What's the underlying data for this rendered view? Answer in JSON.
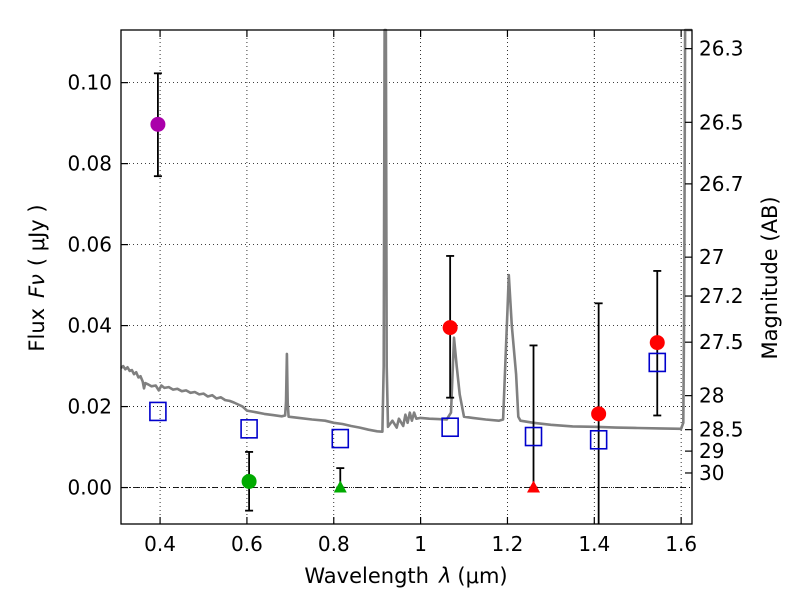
{
  "chart_data": {
    "type": "scatter",
    "xlabel_prefix": "Wavelength",
    "xlabel_symbol": "λ",
    "xlabel_unit": "(μm)",
    "ylabel_prefix": "Flux",
    "ylabel_symbol": "Fν",
    "ylabel_unit": "( μJy )",
    "y2label": "Magnitude (AB)",
    "xlim": [
      0.31,
      1.625
    ],
    "ylim": [
      -0.009,
      0.113
    ],
    "grid": true,
    "x_ticks": [
      0.4,
      0.6,
      0.8,
      1.0,
      1.2,
      1.4,
      1.6
    ],
    "x_tick_labels": [
      "0.4",
      "0.6",
      "0.8",
      "1",
      "1.2",
      "1.4",
      "1.6"
    ],
    "y_ticks": [
      0.0,
      0.02,
      0.04,
      0.06,
      0.08,
      0.1
    ],
    "y_tick_labels": [
      "0.00",
      "0.02",
      "0.04",
      "0.06",
      "0.08",
      "0.10"
    ],
    "mag_ticks": [
      {
        "label": "26.3",
        "flux": 0.1084
      },
      {
        "label": "26.5",
        "flux": 0.0902
      },
      {
        "label": "26.7",
        "flux": 0.075
      },
      {
        "label": "27",
        "flux": 0.0569
      },
      {
        "label": "27.2",
        "flux": 0.0473
      },
      {
        "label": "27.5",
        "flux": 0.0359
      },
      {
        "label": "28",
        "flux": 0.0227
      },
      {
        "label": "28.5",
        "flux": 0.0143
      },
      {
        "label": "29",
        "flux": 0.009
      },
      {
        "label": "30",
        "flux": 0.0036
      }
    ],
    "measurements": [
      {
        "x": 0.395,
        "y": 0.0897,
        "err_low": 0.0769,
        "err_high": 0.1023,
        "color": "#aa00aa",
        "marker": "circle"
      },
      {
        "x": 0.605,
        "y": 0.0015,
        "err_low": -0.0057,
        "err_high": 0.0088,
        "color": "#00aa00",
        "marker": "circle"
      },
      {
        "x": 0.815,
        "y": 0.0,
        "err_low": 0.0,
        "err_high": 0.0048,
        "color": "#00aa00",
        "marker": "triangle"
      },
      {
        "x": 1.068,
        "y": 0.0395,
        "err_low": 0.0222,
        "err_high": 0.0572,
        "color": "#ff0000",
        "marker": "circle"
      },
      {
        "x": 1.26,
        "y": 0.0,
        "err_low": 0.0,
        "err_high": 0.0351,
        "color": "#ff0000",
        "marker": "triangle"
      },
      {
        "x": 1.41,
        "y": 0.0182,
        "err_low": -0.009,
        "err_high": 0.0455,
        "color": "#ff0000",
        "marker": "circle"
      },
      {
        "x": 1.545,
        "y": 0.0358,
        "err_low": 0.0178,
        "err_high": 0.0535,
        "color": "#ff0000",
        "marker": "circle"
      }
    ],
    "model_photometry": {
      "color": "#0000cc",
      "marker": "square",
      "points": [
        [
          0.395,
          0.0188
        ],
        [
          0.605,
          0.0145
        ],
        [
          0.815,
          0.0121
        ],
        [
          1.068,
          0.0149
        ],
        [
          1.26,
          0.0126
        ],
        [
          1.41,
          0.0118
        ],
        [
          1.545,
          0.0309
        ]
      ]
    },
    "sed_model": {
      "color": "#808080",
      "points": [
        [
          0.31,
          0.0295
        ],
        [
          0.315,
          0.03
        ],
        [
          0.32,
          0.0292
        ],
        [
          0.325,
          0.0297
        ],
        [
          0.33,
          0.0288
        ],
        [
          0.335,
          0.029
        ],
        [
          0.34,
          0.028
        ],
        [
          0.345,
          0.0285
        ],
        [
          0.35,
          0.0272
        ],
        [
          0.355,
          0.0275
        ],
        [
          0.36,
          0.0262
        ],
        [
          0.363,
          0.0245
        ],
        [
          0.366,
          0.0258
        ],
        [
          0.372,
          0.0255
        ],
        [
          0.38,
          0.025
        ],
        [
          0.39,
          0.0252
        ],
        [
          0.397,
          0.024
        ],
        [
          0.403,
          0.0252
        ],
        [
          0.41,
          0.0246
        ],
        [
          0.42,
          0.0248
        ],
        [
          0.43,
          0.0242
        ],
        [
          0.44,
          0.0244
        ],
        [
          0.45,
          0.0238
        ],
        [
          0.46,
          0.024
        ],
        [
          0.47,
          0.0234
        ],
        [
          0.48,
          0.0236
        ],
        [
          0.49,
          0.023
        ],
        [
          0.5,
          0.0232
        ],
        [
          0.51,
          0.0225
        ],
        [
          0.52,
          0.0228
        ],
        [
          0.53,
          0.022
        ],
        [
          0.54,
          0.0223
        ],
        [
          0.55,
          0.0216
        ],
        [
          0.56,
          0.0214
        ],
        [
          0.57,
          0.021
        ],
        [
          0.58,
          0.0205
        ],
        [
          0.59,
          0.02
        ],
        [
          0.6,
          0.019
        ],
        [
          0.62,
          0.0186
        ],
        [
          0.64,
          0.0182
        ],
        [
          0.66,
          0.0179
        ],
        [
          0.68,
          0.0176
        ],
        [
          0.688,
          0.0178
        ],
        [
          0.69,
          0.021
        ],
        [
          0.692,
          0.033
        ],
        [
          0.694,
          0.021
        ],
        [
          0.696,
          0.0175
        ],
        [
          0.72,
          0.0172
        ],
        [
          0.75,
          0.0168
        ],
        [
          0.78,
          0.0165
        ],
        [
          0.8,
          0.016
        ],
        [
          0.82,
          0.0157
        ],
        [
          0.84,
          0.0152
        ],
        [
          0.86,
          0.0148
        ],
        [
          0.88,
          0.0143
        ],
        [
          0.9,
          0.0139
        ],
        [
          0.912,
          0.0138
        ],
        [
          0.915,
          0.03
        ],
        [
          0.917,
          0.113
        ],
        [
          0.92,
          0.113
        ],
        [
          0.922,
          0.03
        ],
        [
          0.925,
          0.015
        ],
        [
          0.935,
          0.0165
        ],
        [
          0.945,
          0.0148
        ],
        [
          0.95,
          0.017
        ],
        [
          0.96,
          0.0152
        ],
        [
          0.965,
          0.018
        ],
        [
          0.97,
          0.016
        ],
        [
          0.975,
          0.0185
        ],
        [
          0.98,
          0.0165
        ],
        [
          0.985,
          0.0185
        ],
        [
          0.99,
          0.017
        ],
        [
          1.0,
          0.0172
        ],
        [
          1.02,
          0.017
        ],
        [
          1.04,
          0.0169
        ],
        [
          1.06,
          0.0168
        ],
        [
          1.07,
          0.0185
        ],
        [
          1.077,
          0.037
        ],
        [
          1.083,
          0.03
        ],
        [
          1.09,
          0.023
        ],
        [
          1.1,
          0.0175
        ],
        [
          1.12,
          0.0172
        ],
        [
          1.15,
          0.0168
        ],
        [
          1.18,
          0.0165
        ],
        [
          1.19,
          0.0168
        ],
        [
          1.2,
          0.044
        ],
        [
          1.203,
          0.0525
        ],
        [
          1.21,
          0.04
        ],
        [
          1.22,
          0.028
        ],
        [
          1.225,
          0.0175
        ],
        [
          1.23,
          0.0165
        ],
        [
          1.26,
          0.016
        ],
        [
          1.3,
          0.0155
        ],
        [
          1.35,
          0.0151
        ],
        [
          1.4,
          0.015
        ],
        [
          1.45,
          0.0148
        ],
        [
          1.5,
          0.0147
        ],
        [
          1.55,
          0.0146
        ],
        [
          1.6,
          0.0145
        ],
        [
          1.605,
          0.016
        ],
        [
          1.607,
          0.045
        ],
        [
          1.609,
          0.113
        ],
        [
          1.613,
          0.113
        ],
        [
          1.617,
          0.113
        ],
        [
          1.625,
          0.113
        ]
      ]
    }
  }
}
